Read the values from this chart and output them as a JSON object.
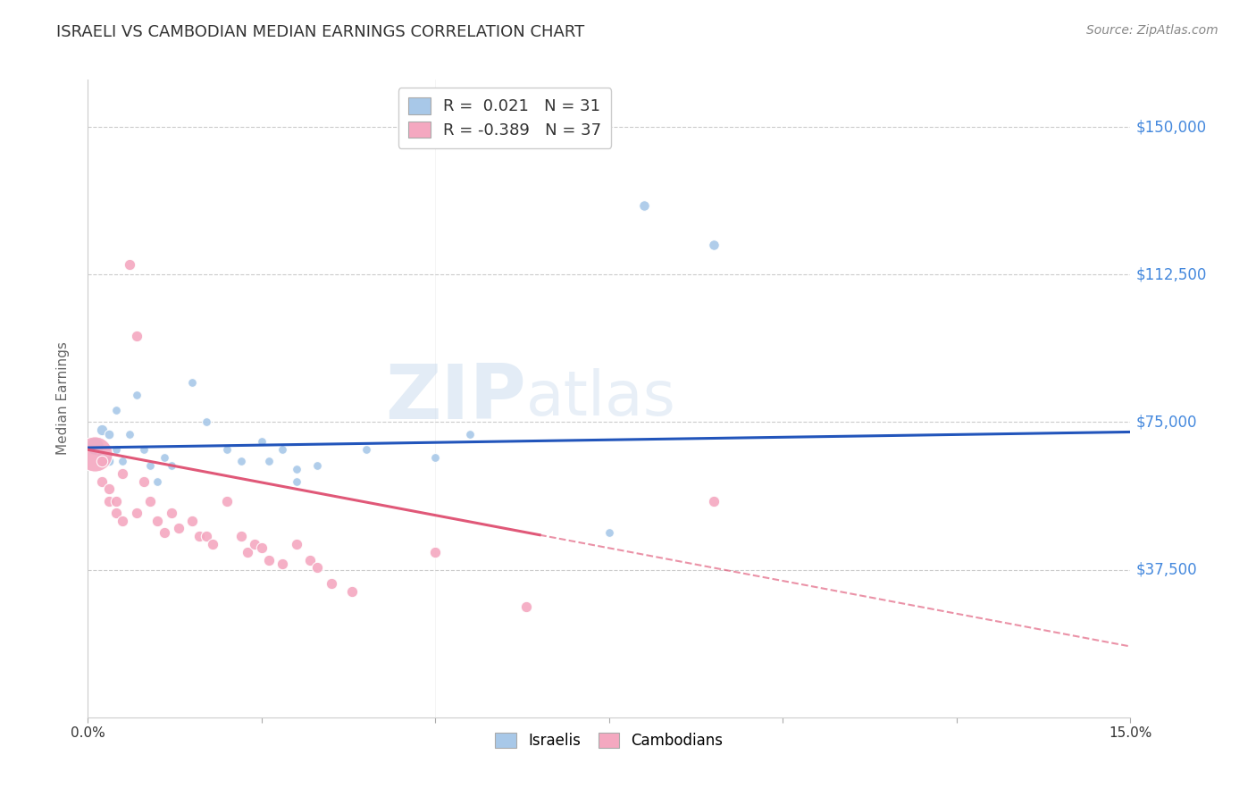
{
  "title": "ISRAELI VS CAMBODIAN MEDIAN EARNINGS CORRELATION CHART",
  "source": "Source: ZipAtlas.com",
  "ylabel": "Median Earnings",
  "yticks": [
    0,
    37500,
    75000,
    112500,
    150000
  ],
  "ytick_labels": [
    "",
    "$37,500",
    "$75,000",
    "$112,500",
    "$150,000"
  ],
  "xmin": 0.0,
  "xmax": 0.15,
  "ymin": 0,
  "ymax": 162000,
  "r_israeli": 0.021,
  "n_israeli": 31,
  "r_cambodian": -0.389,
  "n_cambodian": 37,
  "israeli_color": "#a8c8e8",
  "cambodian_color": "#f4a8c0",
  "trend_israeli_color": "#2255bb",
  "trend_cambodian_color": "#e05878",
  "watermark_zip": "ZIP",
  "watermark_atlas": "atlas",
  "trend_israeli_x0": 0.0,
  "trend_israeli_y0": 68500,
  "trend_israeli_x1": 0.15,
  "trend_israeli_y1": 72500,
  "trend_cambodian_x0": 0.0,
  "trend_cambodian_y0": 68000,
  "trend_cambodian_x1": 0.15,
  "trend_cambodian_y1": 18000,
  "trend_solid_end": 0.065,
  "israeli_points": [
    [
      0.001,
      69000,
      200
    ],
    [
      0.002,
      73000,
      80
    ],
    [
      0.002,
      67000,
      60
    ],
    [
      0.003,
      72000,
      60
    ],
    [
      0.003,
      65000,
      60
    ],
    [
      0.004,
      78000,
      50
    ],
    [
      0.004,
      68000,
      50
    ],
    [
      0.005,
      65000,
      50
    ],
    [
      0.006,
      72000,
      50
    ],
    [
      0.007,
      82000,
      50
    ],
    [
      0.008,
      68000,
      50
    ],
    [
      0.009,
      64000,
      50
    ],
    [
      0.01,
      60000,
      50
    ],
    [
      0.011,
      66000,
      50
    ],
    [
      0.012,
      64000,
      50
    ],
    [
      0.015,
      85000,
      50
    ],
    [
      0.017,
      75000,
      50
    ],
    [
      0.02,
      68000,
      50
    ],
    [
      0.022,
      65000,
      50
    ],
    [
      0.025,
      70000,
      50
    ],
    [
      0.026,
      65000,
      50
    ],
    [
      0.028,
      68000,
      50
    ],
    [
      0.03,
      63000,
      50
    ],
    [
      0.03,
      60000,
      50
    ],
    [
      0.033,
      64000,
      50
    ],
    [
      0.04,
      68000,
      50
    ],
    [
      0.05,
      66000,
      50
    ],
    [
      0.055,
      72000,
      50
    ],
    [
      0.075,
      47000,
      50
    ],
    [
      0.08,
      130000,
      70
    ],
    [
      0.09,
      120000,
      70
    ]
  ],
  "cambodian_points": [
    [
      0.001,
      67000,
      800
    ],
    [
      0.002,
      65000,
      80
    ],
    [
      0.002,
      60000,
      80
    ],
    [
      0.003,
      58000,
      80
    ],
    [
      0.003,
      55000,
      80
    ],
    [
      0.004,
      55000,
      80
    ],
    [
      0.004,
      52000,
      80
    ],
    [
      0.005,
      50000,
      80
    ],
    [
      0.005,
      62000,
      80
    ],
    [
      0.006,
      115000,
      80
    ],
    [
      0.007,
      97000,
      80
    ],
    [
      0.007,
      52000,
      80
    ],
    [
      0.008,
      60000,
      80
    ],
    [
      0.009,
      55000,
      80
    ],
    [
      0.01,
      50000,
      80
    ],
    [
      0.011,
      47000,
      80
    ],
    [
      0.012,
      52000,
      80
    ],
    [
      0.013,
      48000,
      80
    ],
    [
      0.015,
      50000,
      80
    ],
    [
      0.016,
      46000,
      80
    ],
    [
      0.017,
      46000,
      80
    ],
    [
      0.018,
      44000,
      80
    ],
    [
      0.02,
      55000,
      80
    ],
    [
      0.022,
      46000,
      80
    ],
    [
      0.023,
      42000,
      80
    ],
    [
      0.024,
      44000,
      80
    ],
    [
      0.025,
      43000,
      80
    ],
    [
      0.026,
      40000,
      80
    ],
    [
      0.028,
      39000,
      80
    ],
    [
      0.03,
      44000,
      80
    ],
    [
      0.032,
      40000,
      80
    ],
    [
      0.033,
      38000,
      80
    ],
    [
      0.035,
      34000,
      80
    ],
    [
      0.038,
      32000,
      80
    ],
    [
      0.05,
      42000,
      80
    ],
    [
      0.063,
      28000,
      80
    ],
    [
      0.09,
      55000,
      80
    ]
  ]
}
